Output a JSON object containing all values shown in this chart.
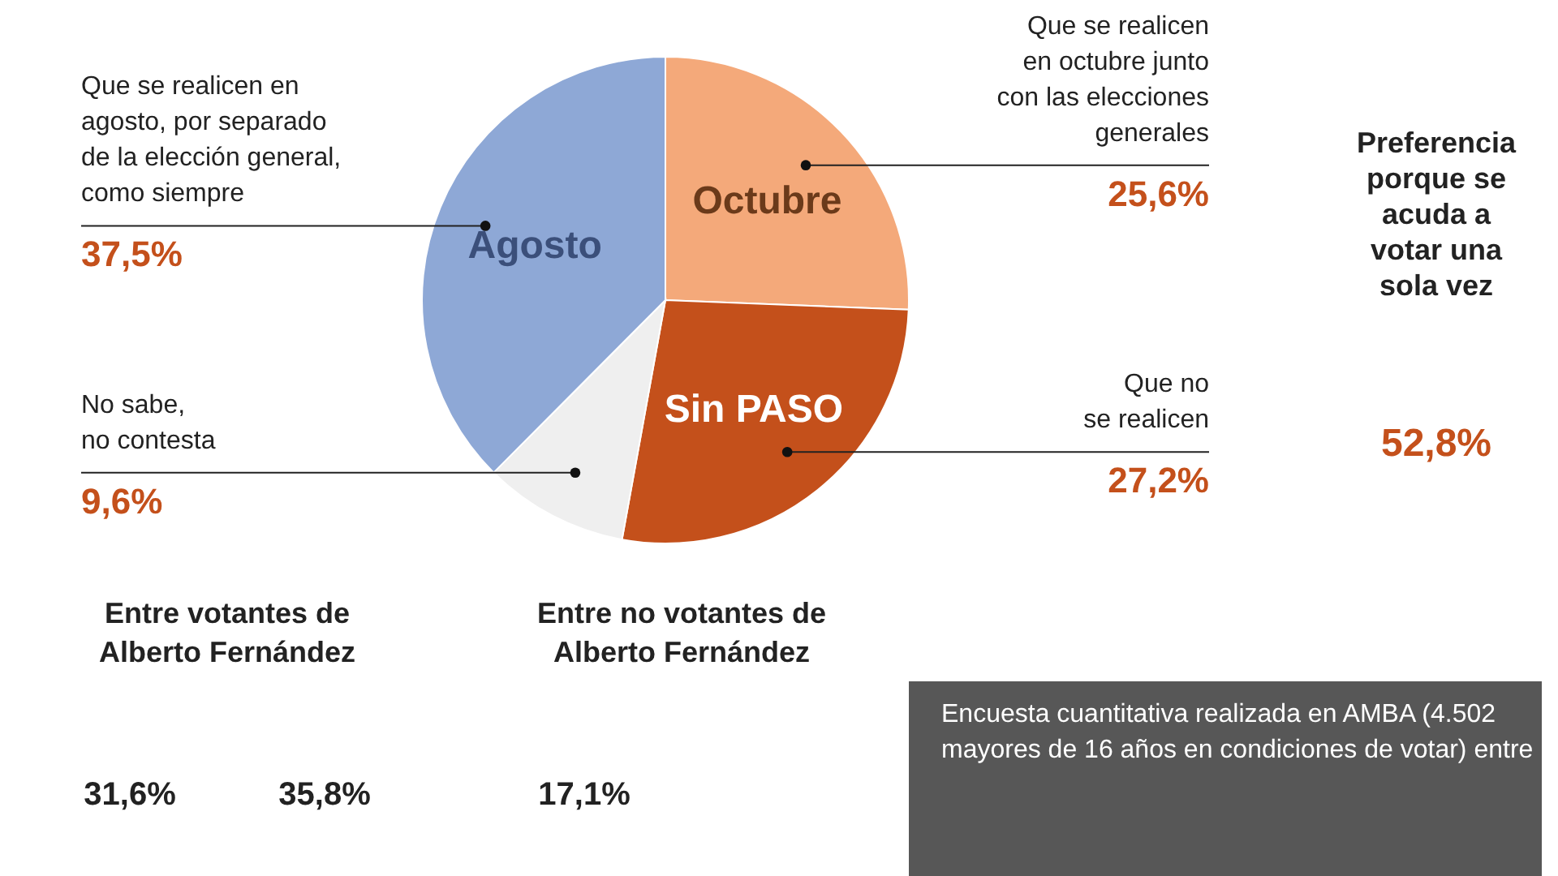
{
  "chart_data": [
    {
      "type": "pie",
      "categories": [
        "Octubre",
        "Sin PASO",
        null,
        "Agosto"
      ],
      "values": [
        25.6,
        27.2,
        9.6,
        37.5
      ],
      "colors": [
        "#f4a97a",
        "#c4501b",
        "#efefef",
        "#8ea8d6"
      ],
      "value_labels": [
        "25,6%",
        "27,2%",
        "9,6%",
        "37,5%"
      ],
      "annotations": [
        "Que se realicen\nen octubre junto\ncon las elecciones\ngenerales",
        "Que no\nse realicen",
        "No sabe,\nno contesta",
        "Que se realicen en\nagosto, por separado\nde la elección general,\ncomo siempre",
        "Preferencia\nporque se\nacuda a\nvotar una\nsola vez",
        "52,8%",
        "Encuesta cuantitativa realizada en AMBA (4.502\nmayores de 16 años en condiciones de votar) entre"
      ]
    },
    {
      "type": "other",
      "title": "Entre votantes de\nAlberto Fernández",
      "annotations": [
        "31,6%",
        "35,8%"
      ]
    },
    {
      "type": "other",
      "title": "Entre no votantes de\nAlberto Fernández",
      "annotations": [
        "17,1%"
      ]
    }
  ]
}
